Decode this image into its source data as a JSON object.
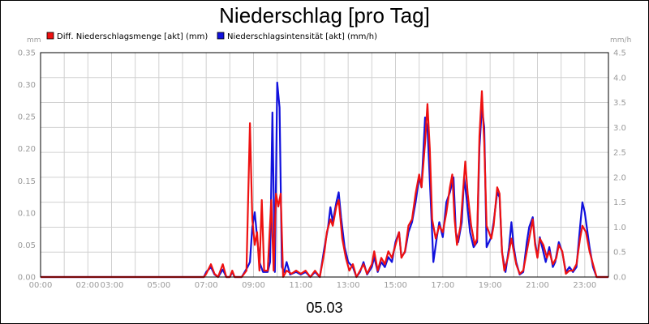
{
  "chart_data": {
    "type": "line",
    "title": "Niederschlag [pro Tag]",
    "subtitle": "05.03",
    "y_unit_left": "mm",
    "y_unit_right": "mm/h",
    "ylim_left": [
      0,
      0.35
    ],
    "ylim_right": [
      0,
      4.5
    ],
    "xlim": [
      0,
      24
    ],
    "grid": true,
    "legend_position": "top-left",
    "x_ticks": [
      "00:00",
      "02:00",
      "03:00",
      "05:00",
      "07:00",
      "09:00",
      "11:00",
      "13:00",
      "15:00",
      "17:00",
      "19:00",
      "21:00",
      "23:00"
    ],
    "y_ticks_left": [
      "0.00",
      "0.05",
      "0.10",
      "0.15",
      "0.20",
      "0.25",
      "0.30",
      "0.35"
    ],
    "y_ticks_right": [
      "0.0",
      "0.5",
      "1.0",
      "1.5",
      "2.0",
      "2.5",
      "3.0",
      "3.5",
      "4.0",
      "4.5"
    ],
    "series": [
      {
        "name": "Diff. Niederschlagsmenge [akt] (mm)",
        "color": "#ee1111",
        "axis": "left",
        "points": [
          [
            0,
            0
          ],
          [
            6.9,
            0
          ],
          [
            7.0,
            0.005
          ],
          [
            7.2,
            0.02
          ],
          [
            7.35,
            0.005
          ],
          [
            7.5,
            0
          ],
          [
            7.7,
            0.02
          ],
          [
            7.85,
            0
          ],
          [
            8.0,
            0
          ],
          [
            8.1,
            0.01
          ],
          [
            8.2,
            0
          ],
          [
            8.5,
            0
          ],
          [
            8.7,
            0.01
          ],
          [
            8.85,
            0.24
          ],
          [
            8.95,
            0.09
          ],
          [
            9.05,
            0.05
          ],
          [
            9.15,
            0.07
          ],
          [
            9.25,
            0.01
          ],
          [
            9.35,
            0.12
          ],
          [
            9.45,
            0.01
          ],
          [
            9.6,
            0.01
          ],
          [
            9.75,
            0.12
          ],
          [
            9.85,
            0.01
          ],
          [
            9.95,
            0.13
          ],
          [
            10.05,
            0.11
          ],
          [
            10.15,
            0.13
          ],
          [
            10.25,
            0
          ],
          [
            10.4,
            0.01
          ],
          [
            10.6,
            0.005
          ],
          [
            10.8,
            0.01
          ],
          [
            11.0,
            0.005
          ],
          [
            11.2,
            0.01
          ],
          [
            11.4,
            0
          ],
          [
            11.6,
            0.01
          ],
          [
            11.8,
            0
          ],
          [
            12.0,
            0.04
          ],
          [
            12.1,
            0.07
          ],
          [
            12.25,
            0.09
          ],
          [
            12.35,
            0.08
          ],
          [
            12.5,
            0.11
          ],
          [
            12.6,
            0.12
          ],
          [
            12.75,
            0.06
          ],
          [
            12.9,
            0.03
          ],
          [
            13.05,
            0.01
          ],
          [
            13.2,
            0.02
          ],
          [
            13.35,
            0
          ],
          [
            13.5,
            0.01
          ],
          [
            13.65,
            0.02
          ],
          [
            13.8,
            0.005
          ],
          [
            14.0,
            0.02
          ],
          [
            14.1,
            0.04
          ],
          [
            14.25,
            0.01
          ],
          [
            14.4,
            0.03
          ],
          [
            14.55,
            0.02
          ],
          [
            14.7,
            0.04
          ],
          [
            14.85,
            0.03
          ],
          [
            15.0,
            0.05
          ],
          [
            15.15,
            0.07
          ],
          [
            15.25,
            0.03
          ],
          [
            15.4,
            0.04
          ],
          [
            15.55,
            0.08
          ],
          [
            15.7,
            0.09
          ],
          [
            15.85,
            0.13
          ],
          [
            16.0,
            0.16
          ],
          [
            16.1,
            0.14
          ],
          [
            16.25,
            0.21
          ],
          [
            16.35,
            0.27
          ],
          [
            16.45,
            0.2
          ],
          [
            16.55,
            0.09
          ],
          [
            16.7,
            0.06
          ],
          [
            16.85,
            0.08
          ],
          [
            17.0,
            0.07
          ],
          [
            17.15,
            0.1
          ],
          [
            17.3,
            0.14
          ],
          [
            17.4,
            0.16
          ],
          [
            17.5,
            0.09
          ],
          [
            17.6,
            0.05
          ],
          [
            17.75,
            0.08
          ],
          [
            17.85,
            0.13
          ],
          [
            17.95,
            0.18
          ],
          [
            18.05,
            0.13
          ],
          [
            18.2,
            0.08
          ],
          [
            18.35,
            0.05
          ],
          [
            18.45,
            0.06
          ],
          [
            18.55,
            0.22
          ],
          [
            18.65,
            0.29
          ],
          [
            18.75,
            0.21
          ],
          [
            18.85,
            0.08
          ],
          [
            18.95,
            0.07
          ],
          [
            19.05,
            0.06
          ],
          [
            19.15,
            0.08
          ],
          [
            19.3,
            0.14
          ],
          [
            19.4,
            0.13
          ],
          [
            19.5,
            0.04
          ],
          [
            19.6,
            0.01
          ],
          [
            19.75,
            0.03
          ],
          [
            19.9,
            0.06
          ],
          [
            20.0,
            0.04
          ],
          [
            20.1,
            0.02
          ],
          [
            20.25,
            0.005
          ],
          [
            20.4,
            0.01
          ],
          [
            20.55,
            0.04
          ],
          [
            20.7,
            0.07
          ],
          [
            20.8,
            0.09
          ],
          [
            20.9,
            0.05
          ],
          [
            21.0,
            0.03
          ],
          [
            21.1,
            0.06
          ],
          [
            21.25,
            0.05
          ],
          [
            21.4,
            0.03
          ],
          [
            21.5,
            0.04
          ],
          [
            21.65,
            0.02
          ],
          [
            21.8,
            0.03
          ],
          [
            21.9,
            0.05
          ],
          [
            22.05,
            0.04
          ],
          [
            22.2,
            0.005
          ],
          [
            22.35,
            0.01
          ],
          [
            22.5,
            0.01
          ],
          [
            22.65,
            0.02
          ],
          [
            22.8,
            0.06
          ],
          [
            22.9,
            0.08
          ],
          [
            23.05,
            0.07
          ],
          [
            23.2,
            0.04
          ],
          [
            23.35,
            0.02
          ],
          [
            23.5,
            0
          ],
          [
            24,
            0
          ]
        ]
      },
      {
        "name": "Niederschlagsintensität [akt] (mm/h)",
        "color": "#1111dd",
        "axis": "right",
        "points": [
          [
            0,
            0
          ],
          [
            6.9,
            0
          ],
          [
            7.0,
            0.1
          ],
          [
            7.2,
            0.2
          ],
          [
            7.35,
            0.05
          ],
          [
            7.5,
            0
          ],
          [
            7.7,
            0.15
          ],
          [
            7.85,
            0
          ],
          [
            8.0,
            0
          ],
          [
            8.1,
            0.1
          ],
          [
            8.2,
            0
          ],
          [
            8.5,
            0
          ],
          [
            8.75,
            0.2
          ],
          [
            8.85,
            0.3
          ],
          [
            8.95,
            1.0
          ],
          [
            9.05,
            1.3
          ],
          [
            9.15,
            0.8
          ],
          [
            9.25,
            0.3
          ],
          [
            9.4,
            0.1
          ],
          [
            9.5,
            0.1
          ],
          [
            9.6,
            0.1
          ],
          [
            9.7,
            0.3
          ],
          [
            9.8,
            3.3
          ],
          [
            9.9,
            0.1
          ],
          [
            10.0,
            3.9
          ],
          [
            10.1,
            3.4
          ],
          [
            10.2,
            0.2
          ],
          [
            10.3,
            0.1
          ],
          [
            10.4,
            0.3
          ],
          [
            10.55,
            0.05
          ],
          [
            10.8,
            0.1
          ],
          [
            11.0,
            0.05
          ],
          [
            11.2,
            0.1
          ],
          [
            11.4,
            0
          ],
          [
            11.6,
            0.1
          ],
          [
            11.8,
            0
          ],
          [
            12.0,
            0.6
          ],
          [
            12.15,
            1.0
          ],
          [
            12.25,
            1.4
          ],
          [
            12.35,
            1.1
          ],
          [
            12.5,
            1.5
          ],
          [
            12.6,
            1.7
          ],
          [
            12.7,
            1.2
          ],
          [
            12.85,
            0.6
          ],
          [
            13.0,
            0.3
          ],
          [
            13.2,
            0.2
          ],
          [
            13.35,
            0
          ],
          [
            13.5,
            0.1
          ],
          [
            13.65,
            0.3
          ],
          [
            13.8,
            0.05
          ],
          [
            14.0,
            0.2
          ],
          [
            14.1,
            0.4
          ],
          [
            14.25,
            0.1
          ],
          [
            14.4,
            0.3
          ],
          [
            14.55,
            0.2
          ],
          [
            14.7,
            0.4
          ],
          [
            14.85,
            0.3
          ],
          [
            15.0,
            0.7
          ],
          [
            15.15,
            0.9
          ],
          [
            15.25,
            0.4
          ],
          [
            15.4,
            0.5
          ],
          [
            15.55,
            0.9
          ],
          [
            15.7,
            1.1
          ],
          [
            15.85,
            1.5
          ],
          [
            16.0,
            2.0
          ],
          [
            16.1,
            1.8
          ],
          [
            16.25,
            3.2
          ],
          [
            16.35,
            3.0
          ],
          [
            16.5,
            1.4
          ],
          [
            16.6,
            0.3
          ],
          [
            16.75,
            0.8
          ],
          [
            16.85,
            1.1
          ],
          [
            17.0,
            0.8
          ],
          [
            17.15,
            1.5
          ],
          [
            17.3,
            1.7
          ],
          [
            17.45,
            2.0
          ],
          [
            17.55,
            0.9
          ],
          [
            17.65,
            0.7
          ],
          [
            17.8,
            1.1
          ],
          [
            17.9,
            2.0
          ],
          [
            18.0,
            1.6
          ],
          [
            18.15,
            0.9
          ],
          [
            18.3,
            0.6
          ],
          [
            18.45,
            0.7
          ],
          [
            18.55,
            2.6
          ],
          [
            18.65,
            3.4
          ],
          [
            18.75,
            3.0
          ],
          [
            18.85,
            0.6
          ],
          [
            18.95,
            0.7
          ],
          [
            19.05,
            0.8
          ],
          [
            19.15,
            1.1
          ],
          [
            19.3,
            1.7
          ],
          [
            19.4,
            1.6
          ],
          [
            19.5,
            0.5
          ],
          [
            19.65,
            0.1
          ],
          [
            19.8,
            0.6
          ],
          [
            19.9,
            1.1
          ],
          [
            20.0,
            0.6
          ],
          [
            20.1,
            0.3
          ],
          [
            20.25,
            0.05
          ],
          [
            20.4,
            0.1
          ],
          [
            20.55,
            0.7
          ],
          [
            20.65,
            1.0
          ],
          [
            20.8,
            1.2
          ],
          [
            20.9,
            0.7
          ],
          [
            21.0,
            0.4
          ],
          [
            21.1,
            0.8
          ],
          [
            21.25,
            0.5
          ],
          [
            21.35,
            0.3
          ],
          [
            21.5,
            0.6
          ],
          [
            21.65,
            0.2
          ],
          [
            21.75,
            0.3
          ],
          [
            21.9,
            0.7
          ],
          [
            22.05,
            0.5
          ],
          [
            22.2,
            0.1
          ],
          [
            22.35,
            0.2
          ],
          [
            22.5,
            0.1
          ],
          [
            22.65,
            0.2
          ],
          [
            22.8,
            1.0
          ],
          [
            22.9,
            1.5
          ],
          [
            23.0,
            1.3
          ],
          [
            23.2,
            0.6
          ],
          [
            23.35,
            0.2
          ],
          [
            23.5,
            0
          ],
          [
            24,
            0
          ]
        ]
      }
    ]
  }
}
